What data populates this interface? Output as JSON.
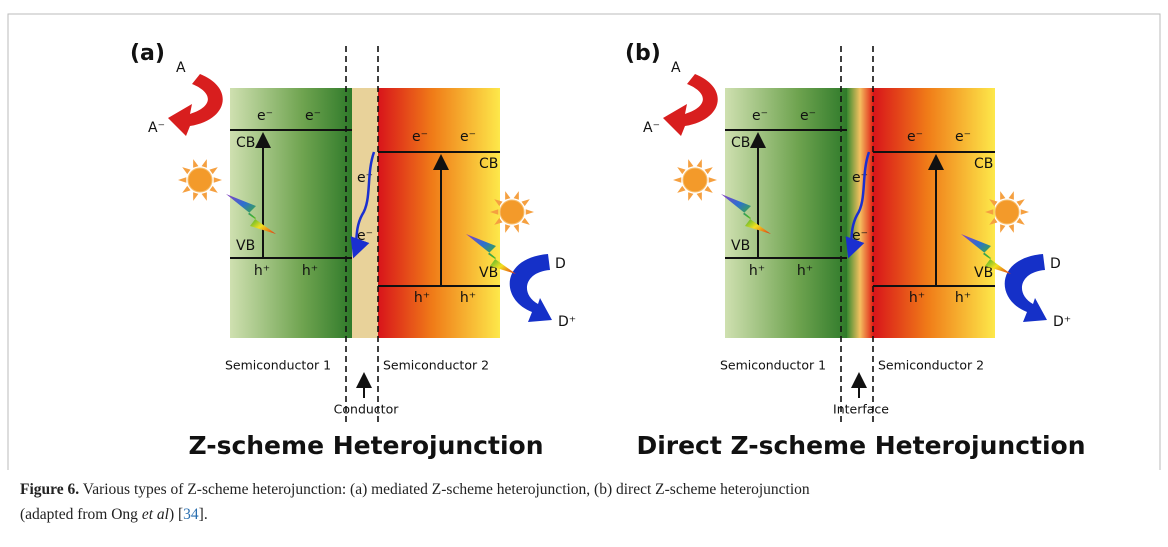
{
  "panels": [
    {
      "label": "(a)",
      "acceptor": "A",
      "acceptor_reduced": "A⁻",
      "donor": "D",
      "donor_oxidized": "D⁺",
      "electron": "e⁻",
      "hole": "h⁺",
      "cb": "CB",
      "vb": "VB",
      "semiconductor_1": "Semiconductor 1",
      "semiconductor_2": "Semiconductor 2",
      "junction": "Conductor",
      "title": "Z-scheme Heterojunction"
    },
    {
      "label": "(b)",
      "acceptor": "A",
      "acceptor_reduced": "A⁻",
      "donor": "D",
      "donor_oxidized": "D⁺",
      "electron": "e⁻",
      "hole": "h⁺",
      "cb": "CB",
      "vb": "VB",
      "semiconductor_1": "Semiconductor 1",
      "semiconductor_2": "Semiconductor 2",
      "junction": "Interface",
      "title": "Direct Z-scheme Heterojunction"
    }
  ],
  "caption": {
    "label": "Figure 6.",
    "text": "Various types of Z-scheme heterojunction: (a) mediated Z-scheme heterojunction, (b) direct Z-scheme heterojunction",
    "line2_start": "(adapted from Ong",
    "italic": "et al",
    "line2_mid": ")",
    "open": "[",
    "reference": "34",
    "close": "]."
  }
}
